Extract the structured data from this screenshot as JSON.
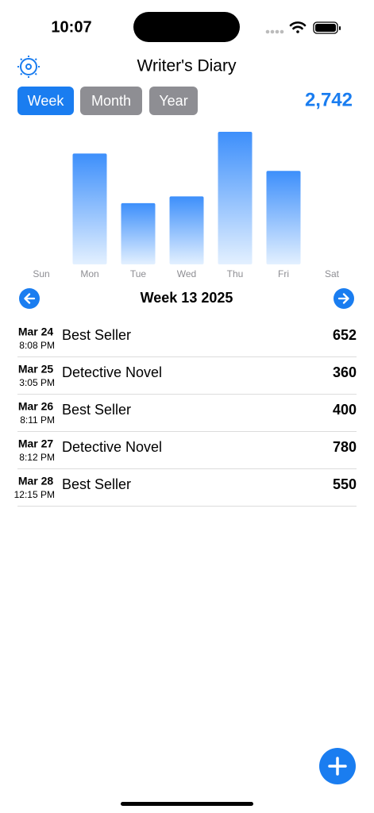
{
  "status_bar": {
    "time": "10:07"
  },
  "header": {
    "title": "Writer's Diary",
    "total": "2,742"
  },
  "tabs": [
    "Week",
    "Month",
    "Year"
  ],
  "chart_data": {
    "type": "bar",
    "categories": [
      "Sun",
      "Mon",
      "Tue",
      "Wed",
      "Thu",
      "Fri",
      "Sat"
    ],
    "values": [
      0,
      652,
      360,
      400,
      780,
      550,
      0
    ],
    "color": "#3d8ffb"
  },
  "nav": {
    "label": "Week 13 2025"
  },
  "entries": [
    {
      "date": "Mar 24",
      "time": "8:08 PM",
      "title": "Best Seller",
      "count": "652"
    },
    {
      "date": "Mar 25",
      "time": "3:05 PM",
      "title": "Detective Novel",
      "count": "360"
    },
    {
      "date": "Mar 26",
      "time": "8:11 PM",
      "title": "Best Seller",
      "count": "400"
    },
    {
      "date": "Mar 27",
      "time": "8:12 PM",
      "title": "Detective Novel",
      "count": "780"
    },
    {
      "date": "Mar 28",
      "time": "12:15 PM",
      "title": "Best Seller",
      "count": "550"
    }
  ]
}
